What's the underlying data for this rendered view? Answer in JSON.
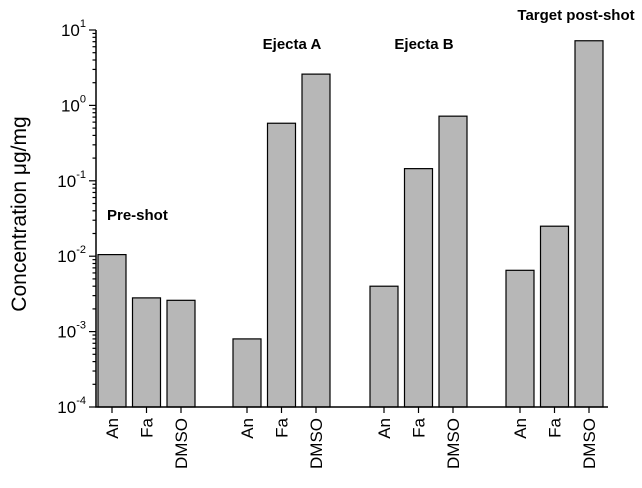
{
  "chart_data": {
    "type": "bar",
    "yscale": "log",
    "ylim": [
      0.0001,
      10
    ],
    "ylabel": "Concentration μg/mg",
    "xlabel": "",
    "title": "",
    "grid": false,
    "y_ticks": [
      {
        "value": 0.0001,
        "base": "10",
        "exp": "-4"
      },
      {
        "value": 0.001,
        "base": "10",
        "exp": "-3"
      },
      {
        "value": 0.01,
        "base": "10",
        "exp": "-2"
      },
      {
        "value": 0.1,
        "base": "10",
        "exp": "-1"
      },
      {
        "value": 1,
        "base": "10",
        "exp": "0"
      },
      {
        "value": 10,
        "base": "10",
        "exp": "1"
      }
    ],
    "groups": [
      {
        "label": "Pre-shot",
        "categories": [
          "An",
          "Fa",
          "DMSO"
        ],
        "values": [
          0.0105,
          0.0028,
          0.0026
        ]
      },
      {
        "label": "Ejecta A",
        "categories": [
          "An",
          "Fa",
          "DMSO"
        ],
        "values": [
          0.0008,
          0.58,
          2.6
        ]
      },
      {
        "label": "Ejecta B",
        "categories": [
          "An",
          "Fa",
          "DMSO"
        ],
        "values": [
          0.004,
          0.145,
          0.72
        ]
      },
      {
        "label": "Target post-shot",
        "categories": [
          "An",
          "Fa",
          "DMSO"
        ],
        "values": [
          0.0065,
          0.025,
          7.2
        ]
      }
    ]
  }
}
